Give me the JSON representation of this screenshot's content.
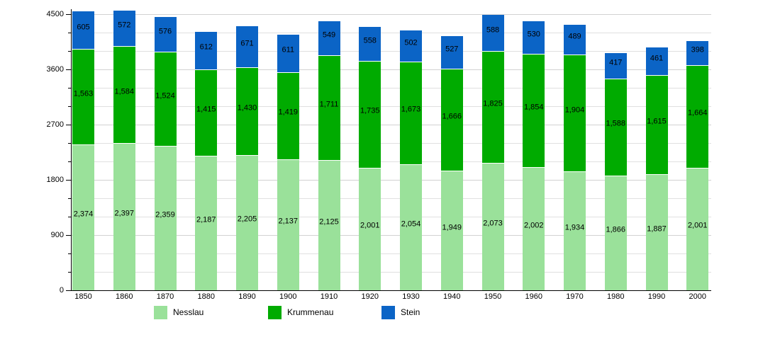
{
  "chart_data": {
    "type": "bar",
    "stacked": true,
    "categories": [
      "1850",
      "1860",
      "1870",
      "1880",
      "1890",
      "1900",
      "1910",
      "1920",
      "1930",
      "1940",
      "1950",
      "1960",
      "1970",
      "1980",
      "1990",
      "2000"
    ],
    "series": [
      {
        "name": "Nesslau",
        "color": "#9ae19a",
        "values": [
          2374,
          2397,
          2359,
          2187,
          2205,
          2137,
          2125,
          2001,
          2054,
          1949,
          2073,
          2002,
          1934,
          1866,
          1887,
          2001
        ]
      },
      {
        "name": "Krummenau",
        "color": "#00ab00",
        "values": [
          1563,
          1584,
          1524,
          1415,
          1430,
          1419,
          1711,
          1735,
          1673,
          1666,
          1825,
          1854,
          1904,
          1588,
          1615,
          1664
        ]
      },
      {
        "name": "Stein",
        "color": "#0b64c6",
        "values": [
          605,
          572,
          576,
          612,
          671,
          611,
          549,
          558,
          502,
          527,
          588,
          530,
          489,
          417,
          461,
          398
        ]
      }
    ],
    "ylim": [
      0,
      4500
    ],
    "y_major_ticks": [
      0,
      900,
      1800,
      2700,
      3600,
      4500
    ],
    "y_minor_step": 300,
    "grid": true,
    "legend_position": "bottom",
    "value_labels": "inside-center-with-thousands-separator",
    "xlabel": "",
    "ylabel": "",
    "title": ""
  }
}
